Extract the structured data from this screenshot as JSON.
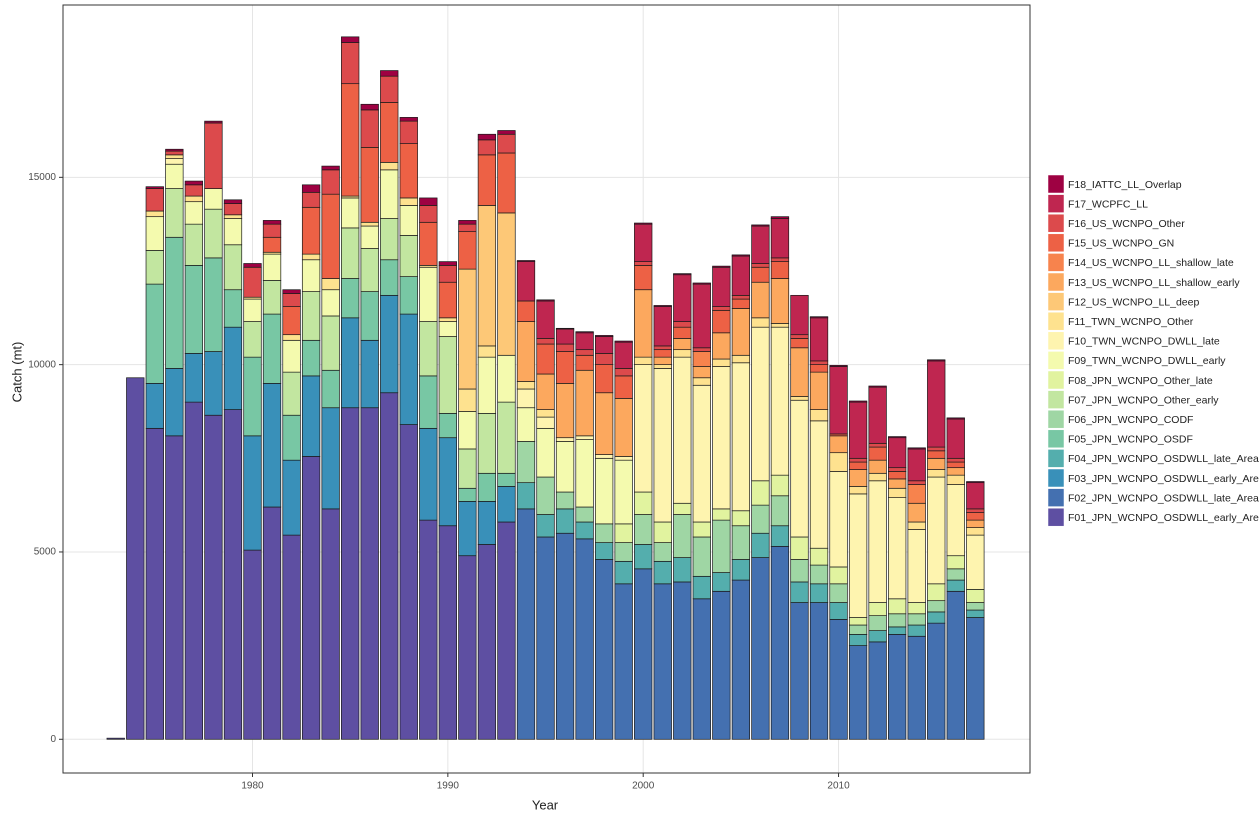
{
  "chart_data": {
    "type": "stacked-bar",
    "x_label": "Year",
    "y_label": "Catch (mt)",
    "x": [
      1973,
      1974,
      1975,
      1976,
      1977,
      1978,
      1979,
      1980,
      1981,
      1982,
      1983,
      1984,
      1985,
      1986,
      1987,
      1988,
      1989,
      1990,
      1991,
      1992,
      1993,
      1994,
      1995,
      1996,
      1997,
      1998,
      1999,
      2000,
      2001,
      2002,
      2003,
      2004,
      2005,
      2006,
      2007,
      2008,
      2009,
      2010,
      2011,
      2012,
      2013,
      2014,
      2015,
      2016,
      2017
    ],
    "xlim": [
      1970.3,
      2019.8
    ],
    "xticks": [
      1980,
      1990,
      2000,
      2010
    ],
    "ylim": [
      -900,
      19600
    ],
    "yticks": [
      0,
      5000,
      10000,
      15000
    ],
    "grid": true,
    "series": [
      {
        "name": "F01_JPN_WCNPO_OSDWLL_early_Area1",
        "color": "#5E4FA2",
        "values": [
          30,
          9650,
          8300,
          8100,
          9000,
          8650,
          8800,
          5050,
          6200,
          5450,
          7550,
          6150,
          8850,
          8850,
          9250,
          8400,
          5850,
          5700,
          4900,
          5200,
          5800,
          0,
          0,
          0,
          0,
          0,
          0,
          0,
          0,
          0,
          0,
          0,
          0,
          0,
          0,
          0,
          0,
          0,
          0,
          0,
          0,
          0,
          0,
          0,
          0
        ]
      },
      {
        "name": "F02_JPN_WCNPO_OSDWLL_late_Area1",
        "color": "#4470B0",
        "values": [
          0,
          0,
          0,
          0,
          0,
          0,
          0,
          0,
          0,
          0,
          0,
          0,
          0,
          0,
          0,
          0,
          0,
          0,
          0,
          0,
          0,
          6150,
          5400,
          5500,
          5350,
          4800,
          4150,
          4550,
          4150,
          4200,
          3750,
          3950,
          4250,
          4850,
          5150,
          3650,
          3650,
          3200,
          2500,
          2600,
          2800,
          2750,
          3100,
          3950,
          3250
        ]
      },
      {
        "name": "F03_JPN_WCNPO_OSDWLL_early_Area2",
        "color": "#3990B9",
        "values": [
          0,
          0,
          1200,
          1800,
          1300,
          1700,
          2200,
          3050,
          3300,
          2000,
          2150,
          2700,
          2400,
          1800,
          2600,
          2950,
          2450,
          2350,
          1450,
          1150,
          950,
          0,
          0,
          0,
          0,
          0,
          0,
          0,
          0,
          0,
          0,
          0,
          0,
          0,
          0,
          0,
          0,
          0,
          0,
          0,
          0,
          0,
          0,
          0,
          0
        ]
      },
      {
        "name": "F04_JPN_WCNPO_OSDWLL_late_Area2",
        "color": "#54AEAD",
        "values": [
          0,
          0,
          0,
          0,
          0,
          0,
          0,
          0,
          0,
          0,
          0,
          0,
          0,
          0,
          0,
          0,
          0,
          0,
          0,
          0,
          0,
          700,
          600,
          650,
          450,
          450,
          600,
          650,
          600,
          650,
          600,
          500,
          550,
          650,
          550,
          550,
          500,
          450,
          300,
          300,
          200,
          300,
          300,
          300,
          200
        ]
      },
      {
        "name": "F05_JPN_WCNPO_OSDF",
        "color": "#78C7A4",
        "values": [
          0,
          0,
          2650,
          3500,
          2350,
          2500,
          1000,
          2100,
          1850,
          1200,
          950,
          1000,
          1050,
          1300,
          950,
          1000,
          1400,
          650,
          350,
          750,
          350,
          0,
          0,
          0,
          0,
          0,
          0,
          0,
          0,
          0,
          0,
          0,
          0,
          0,
          0,
          0,
          0,
          0,
          0,
          0,
          0,
          0,
          0,
          0,
          0
        ]
      },
      {
        "name": "F06_JPN_WCNPO_CODF",
        "color": "#9FD6A4",
        "values": [
          0,
          0,
          0,
          0,
          0,
          0,
          0,
          0,
          0,
          0,
          0,
          0,
          0,
          0,
          0,
          0,
          0,
          0,
          0,
          0,
          0,
          1100,
          1000,
          450,
          400,
          500,
          500,
          800,
          500,
          1150,
          1050,
          1400,
          900,
          750,
          800,
          600,
          500,
          500,
          250,
          400,
          350,
          300,
          300,
          300,
          200
        ]
      },
      {
        "name": "F07_JPN_WCNPO_Other_early",
        "color": "#C2E6A0",
        "values": [
          0,
          0,
          900,
          1300,
          1100,
          1300,
          1200,
          950,
          900,
          1150,
          1300,
          1450,
          1350,
          1150,
          1100,
          1100,
          1450,
          2050,
          1050,
          1600,
          1900,
          0,
          0,
          0,
          0,
          0,
          0,
          0,
          0,
          0,
          0,
          0,
          0,
          0,
          0,
          0,
          0,
          0,
          0,
          0,
          0,
          0,
          0,
          0,
          0
        ]
      },
      {
        "name": "F08_JPN_WCNPO_Other_late",
        "color": "#E1F39F",
        "values": [
          0,
          0,
          0,
          0,
          0,
          0,
          0,
          0,
          0,
          0,
          0,
          0,
          0,
          0,
          0,
          0,
          0,
          0,
          0,
          0,
          0,
          0,
          0,
          0,
          0,
          0,
          500,
          600,
          550,
          300,
          400,
          300,
          400,
          650,
          550,
          600,
          450,
          450,
          200,
          350,
          400,
          300,
          450,
          350,
          350
        ]
      },
      {
        "name": "F09_TWN_WCNPO_DWLL_early",
        "color": "#F4FAAE",
        "values": [
          0,
          0,
          900,
          650,
          600,
          550,
          700,
          600,
          700,
          850,
          850,
          700,
          800,
          600,
          1300,
          800,
          1450,
          400,
          1000,
          1500,
          1250,
          900,
          1300,
          1350,
          1800,
          1750,
          1700,
          0,
          0,
          0,
          0,
          0,
          0,
          0,
          0,
          0,
          0,
          0,
          0,
          0,
          0,
          0,
          0,
          0,
          0
        ]
      },
      {
        "name": "F10_TWN_WCNPO_DWLL_late",
        "color": "#FEF4AF",
        "values": [
          0,
          0,
          0,
          150,
          0,
          0,
          0,
          0,
          0,
          0,
          0,
          0,
          0,
          0,
          0,
          0,
          0,
          0,
          0,
          0,
          0,
          500,
          300,
          100,
          100,
          100,
          100,
          3400,
          4100,
          3900,
          3650,
          3800,
          3950,
          4100,
          3950,
          3650,
          3400,
          2550,
          3300,
          3250,
          2700,
          1950,
          2850,
          1900,
          1450
        ]
      },
      {
        "name": "F11_TWN_WCNPO_Other",
        "color": "#FEE28F",
        "values": [
          0,
          0,
          150,
          100,
          150,
          0,
          100,
          50,
          50,
          150,
          150,
          300,
          50,
          100,
          200,
          200,
          50,
          100,
          600,
          300,
          0,
          200,
          200,
          0,
          0,
          0,
          0,
          200,
          100,
          200,
          200,
          200,
          200,
          250,
          100,
          100,
          300,
          500,
          200,
          200,
          250,
          200,
          200,
          250,
          200
        ]
      },
      {
        "name": "F12_US_WCNPO_LL_deep",
        "color": "#FDC877",
        "values": [
          0,
          0,
          0,
          0,
          0,
          0,
          0,
          0,
          0,
          0,
          0,
          0,
          0,
          0,
          0,
          0,
          0,
          0,
          3200,
          3750,
          3800,
          0,
          0,
          0,
          0,
          0,
          0,
          0,
          0,
          0,
          0,
          0,
          0,
          0,
          0,
          0,
          0,
          0,
          0,
          0,
          0,
          0,
          0,
          0,
          0
        ]
      },
      {
        "name": "F13_US_WCNPO_LL_shallow_early",
        "color": "#FCA85E",
        "values": [
          0,
          0,
          0,
          0,
          0,
          0,
          0,
          0,
          0,
          0,
          0,
          0,
          0,
          0,
          0,
          0,
          0,
          0,
          0,
          0,
          0,
          1600,
          950,
          1450,
          1750,
          1650,
          1550,
          1800,
          200,
          300,
          300,
          700,
          1250,
          950,
          1200,
          1300,
          1000,
          450,
          450,
          350,
          250,
          500,
          300,
          200,
          200
        ]
      },
      {
        "name": "F14_US_WCNPO_LL_shallow_late",
        "color": "#F7834D",
        "values": [
          0,
          0,
          0,
          0,
          0,
          0,
          0,
          0,
          0,
          0,
          0,
          0,
          0,
          0,
          0,
          0,
          0,
          0,
          0,
          0,
          0,
          0,
          0,
          0,
          0,
          0,
          0,
          0,
          0,
          0,
          400,
          0,
          0,
          0,
          0,
          0,
          0,
          0,
          0,
          0,
          0,
          500,
          0,
          0,
          0
        ]
      },
      {
        "name": "F15_US_WCNPO_GN",
        "color": "#ED6145",
        "values": [
          0,
          0,
          0,
          0,
          0,
          0,
          0,
          0,
          400,
          750,
          1250,
          2250,
          3000,
          2000,
          1600,
          1450,
          1150,
          950,
          1000,
          1350,
          1600,
          550,
          800,
          850,
          400,
          750,
          600,
          650,
          200,
          300,
          0,
          600,
          250,
          400,
          450,
          250,
          200,
          50,
          200,
          350,
          200,
          0,
          200,
          150,
          200
        ]
      },
      {
        "name": "F16_US_WCNPO_Other",
        "color": "#DC4A4C",
        "values": [
          0,
          0,
          600,
          100,
          300,
          1750,
          300,
          800,
          350,
          350,
          400,
          650,
          1100,
          1000,
          700,
          600,
          450,
          450,
          200,
          400,
          500,
          0,
          150,
          200,
          150,
          300,
          200,
          100,
          100,
          150,
          100,
          100,
          100,
          100,
          100,
          100,
          100,
          0,
          100,
          100,
          100,
          100,
          100,
          100,
          100
        ]
      },
      {
        "name": "F17_WCPFC_LL",
        "color": "#BF2650",
        "values": [
          0,
          0,
          0,
          0,
          0,
          0,
          0,
          0,
          0,
          0,
          0,
          0,
          0,
          0,
          0,
          0,
          0,
          0,
          0,
          0,
          0,
          1050,
          1000,
          400,
          450,
          450,
          700,
          1000,
          1050,
          1250,
          1700,
          1050,
          1050,
          1000,
          1050,
          1050,
          1150,
          1800,
          1500,
          1500,
          800,
          850,
          2300,
          1050,
          700
        ]
      },
      {
        "name": "F18_IATTC_LL_Overlap",
        "color": "#9E0142",
        "values": [
          0,
          0,
          50,
          50,
          100,
          50,
          100,
          100,
          100,
          100,
          200,
          100,
          150,
          150,
          150,
          100,
          200,
          100,
          100,
          150,
          100,
          30,
          30,
          20,
          30,
          30,
          30,
          30,
          30,
          30,
          30,
          30,
          30,
          30,
          50,
          0,
          30,
          30,
          30,
          30,
          30,
          30,
          30,
          30,
          30
        ]
      }
    ]
  }
}
